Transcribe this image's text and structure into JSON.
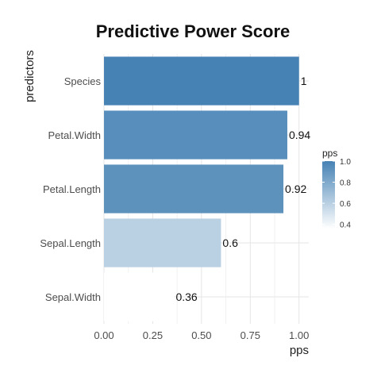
{
  "chart_data": {
    "type": "bar",
    "orientation": "horizontal",
    "title": "Predictive Power Score",
    "xlabel": "pps",
    "ylabel": "predictors",
    "categories": [
      "Species",
      "Petal.Width",
      "Petal.Length",
      "Sepal.Length",
      "Sepal.Width"
    ],
    "values": [
      1,
      0.94,
      0.92,
      0.6,
      0.36
    ],
    "value_labels": [
      "1",
      "0.94",
      "0.92",
      "0.6",
      "0.36"
    ],
    "xlim": [
      0,
      1.05
    ],
    "x_ticks": [
      0,
      0.25,
      0.5,
      0.75,
      1
    ],
    "x_tick_labels": [
      "0.00",
      "0.25",
      "0.50",
      "0.75",
      "1.00"
    ],
    "grid": true,
    "legend": {
      "title": "pps",
      "placement": "right",
      "ticks": [
        1.0,
        0.8,
        0.6,
        0.4
      ],
      "tick_labels": [
        "1.0",
        "0.8",
        "0.6",
        "0.4"
      ],
      "range": [
        0.36,
        1.0
      ],
      "color_low": "#ffffff",
      "color_high": "#4682b4"
    }
  }
}
